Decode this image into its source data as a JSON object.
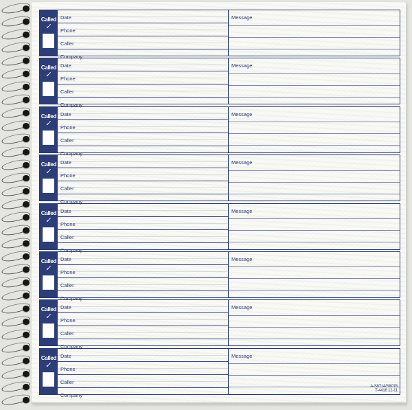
{
  "page": {
    "background_color": "#e4e4e1",
    "paper_color": "#f9f9f5"
  },
  "colors": {
    "navy": "#2d3d77",
    "section_border": "#25356b",
    "row_line": "#35457e",
    "message_line": "#7d88ad",
    "checkbox": "#ffffff",
    "wire": "#55554f",
    "wire_end": "#161614"
  },
  "binding": {
    "coil_count": 31
  },
  "form": {
    "sections_count": 8,
    "called_label": "Called",
    "checkmark_glyph": "✓",
    "field_labels": [
      "Date",
      "Phone",
      "Caller",
      "Company"
    ],
    "message_label": "Message",
    "code_line1": "A-S8714/S8076",
    "code_line2": "T-4416 12-11"
  }
}
